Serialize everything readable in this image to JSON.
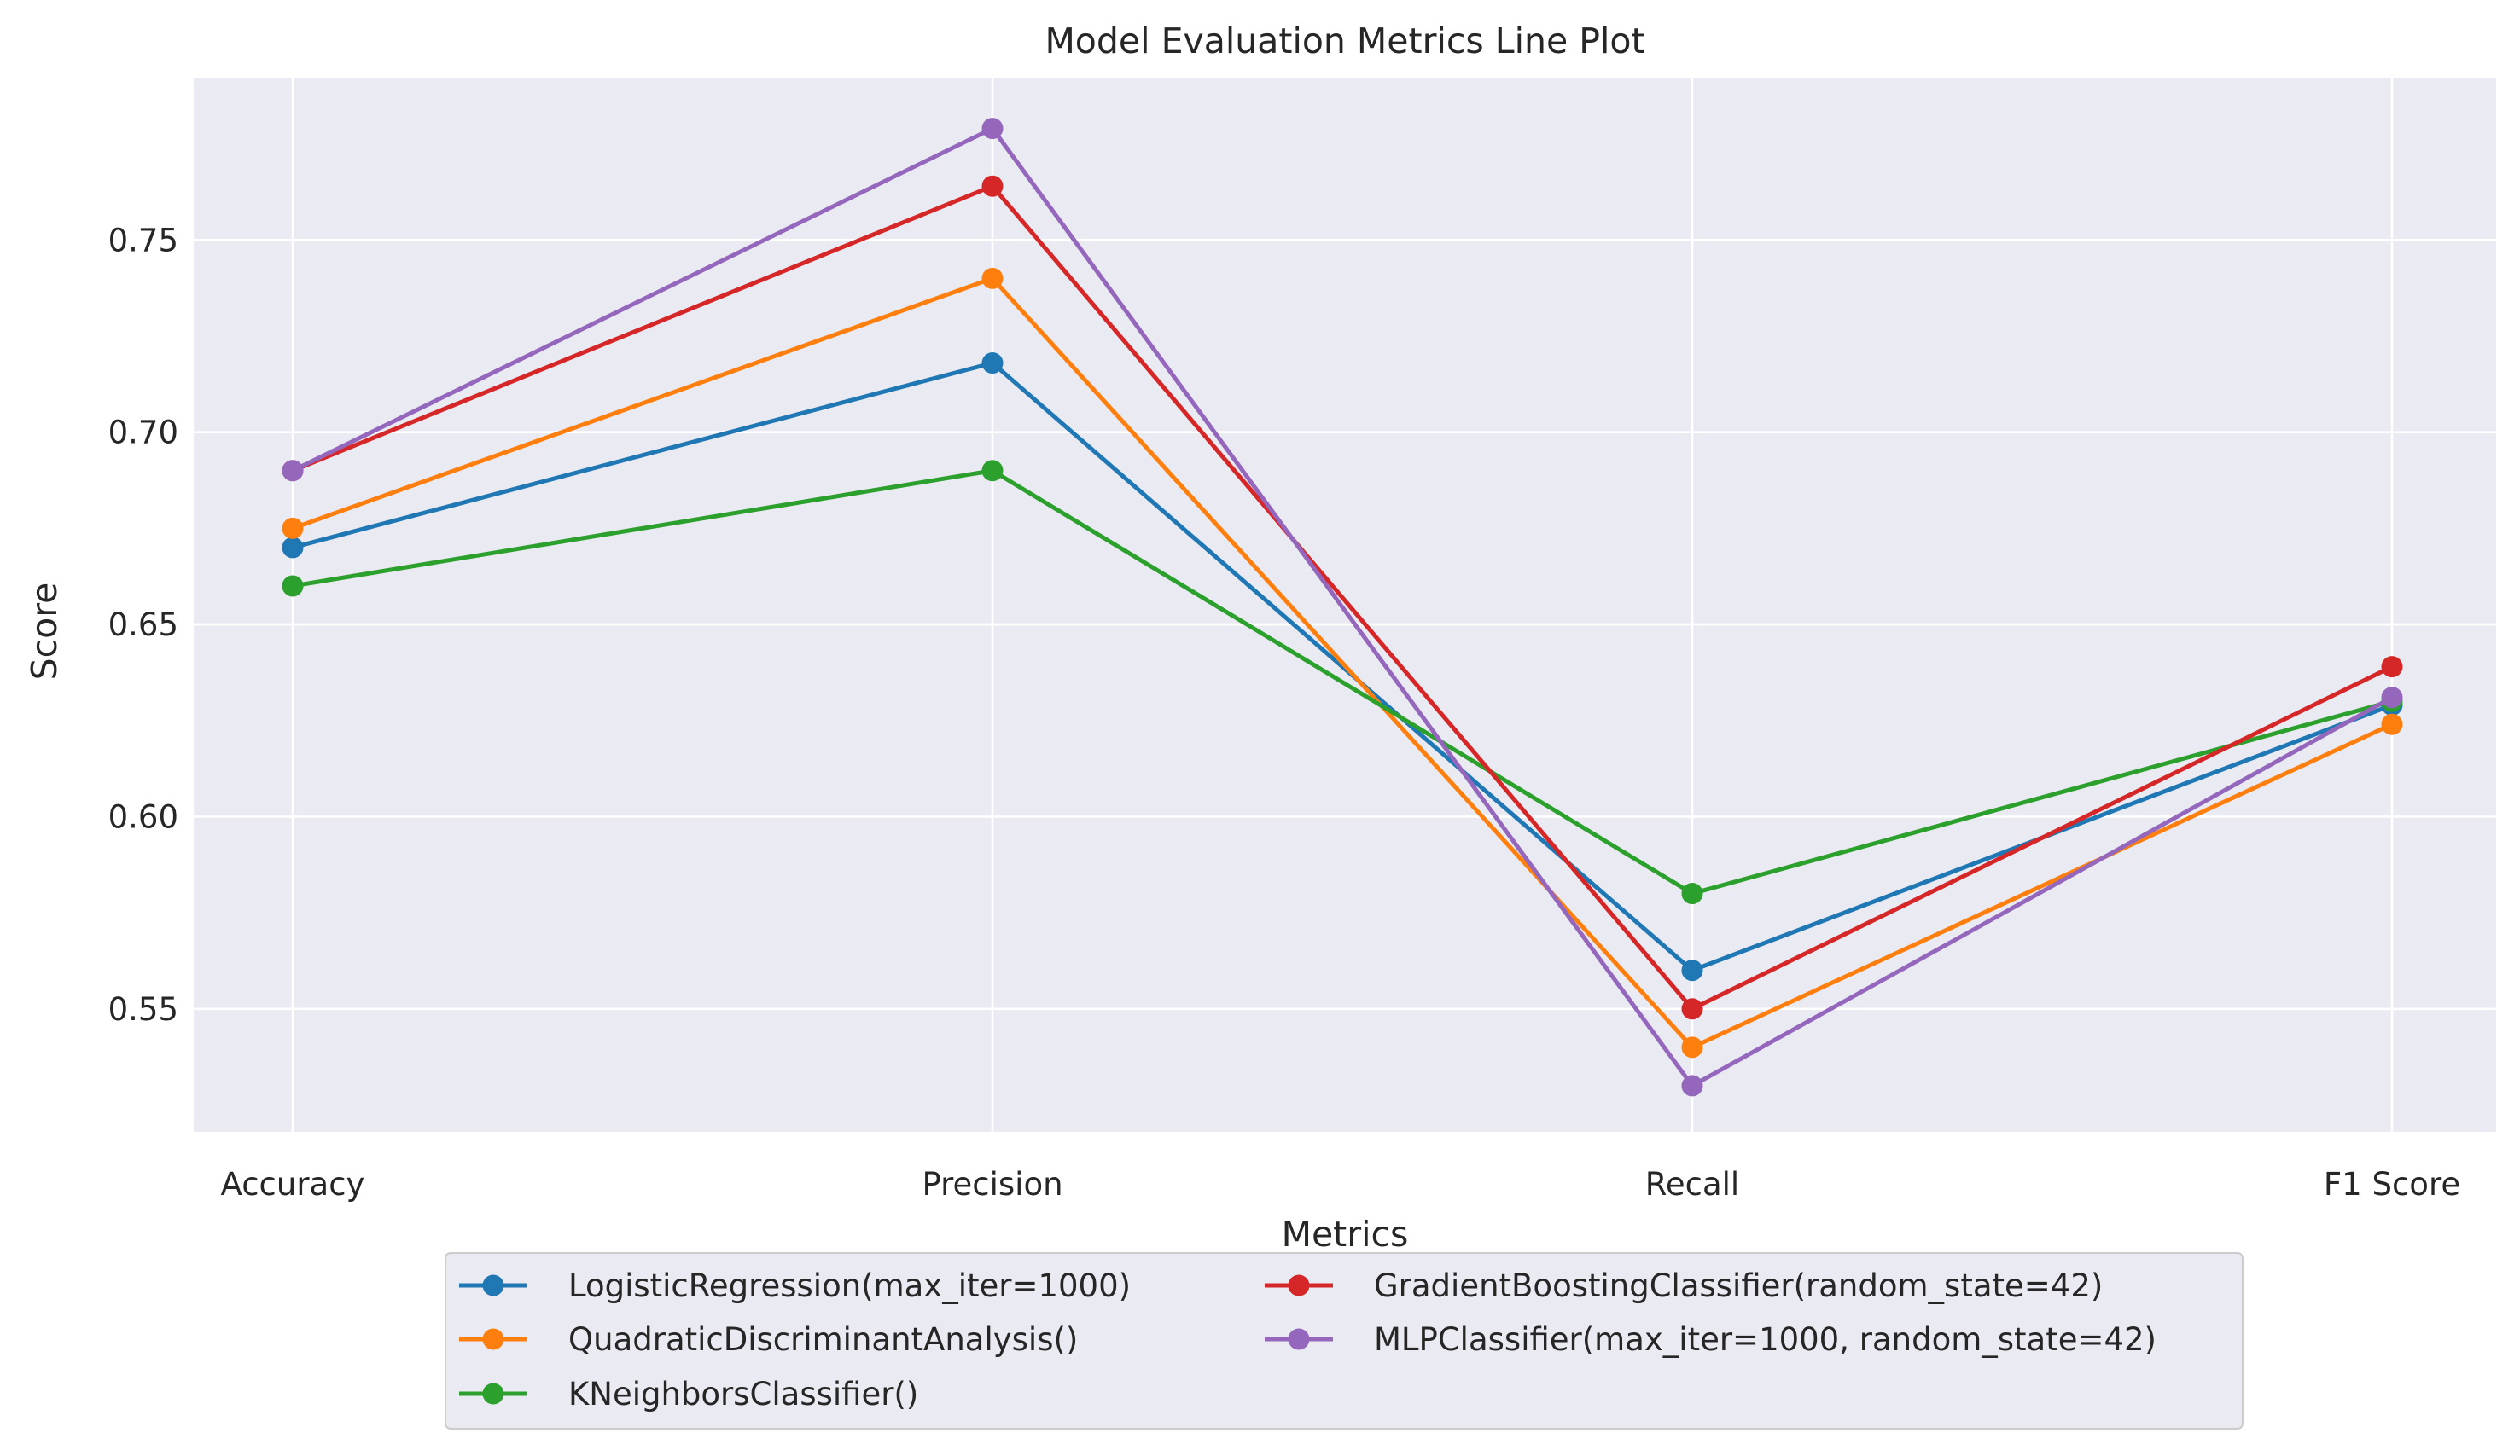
{
  "chart_data": {
    "type": "line",
    "title": "Model Evaluation Metrics Line Plot",
    "xlabel": "Metrics",
    "ylabel": "Score",
    "categories": [
      "Accuracy",
      "Precision",
      "Recall",
      "F1 Score"
    ],
    "ylim": [
      0.518,
      0.792
    ],
    "yticks": [
      0.55,
      0.6,
      0.65,
      0.7,
      0.75
    ],
    "ytick_labels": [
      "0.55",
      "0.60",
      "0.65",
      "0.70",
      "0.75"
    ],
    "grid": true,
    "legend_position": "below plot, two columns",
    "background_color": "#eaeaf2",
    "grid_color": "#ffffff",
    "series": [
      {
        "name": "LogisticRegression(max_iter=1000)",
        "color": "#1f77b4",
        "values": [
          0.67,
          0.718,
          0.56,
          0.629
        ]
      },
      {
        "name": "QuadraticDiscriminantAnalysis()",
        "color": "#ff7f0e",
        "values": [
          0.675,
          0.74,
          0.54,
          0.624
        ]
      },
      {
        "name": "KNeighborsClassifier()",
        "color": "#2ca02c",
        "values": [
          0.66,
          0.69,
          0.58,
          0.63
        ]
      },
      {
        "name": "GradientBoostingClassifier(random_state=42)",
        "color": "#d62728",
        "values": [
          0.69,
          0.764,
          0.55,
          0.639
        ]
      },
      {
        "name": "MLPClassifier(max_iter=1000, random_state=42)",
        "color": "#9467bd",
        "values": [
          0.69,
          0.779,
          0.53,
          0.631
        ]
      }
    ]
  }
}
